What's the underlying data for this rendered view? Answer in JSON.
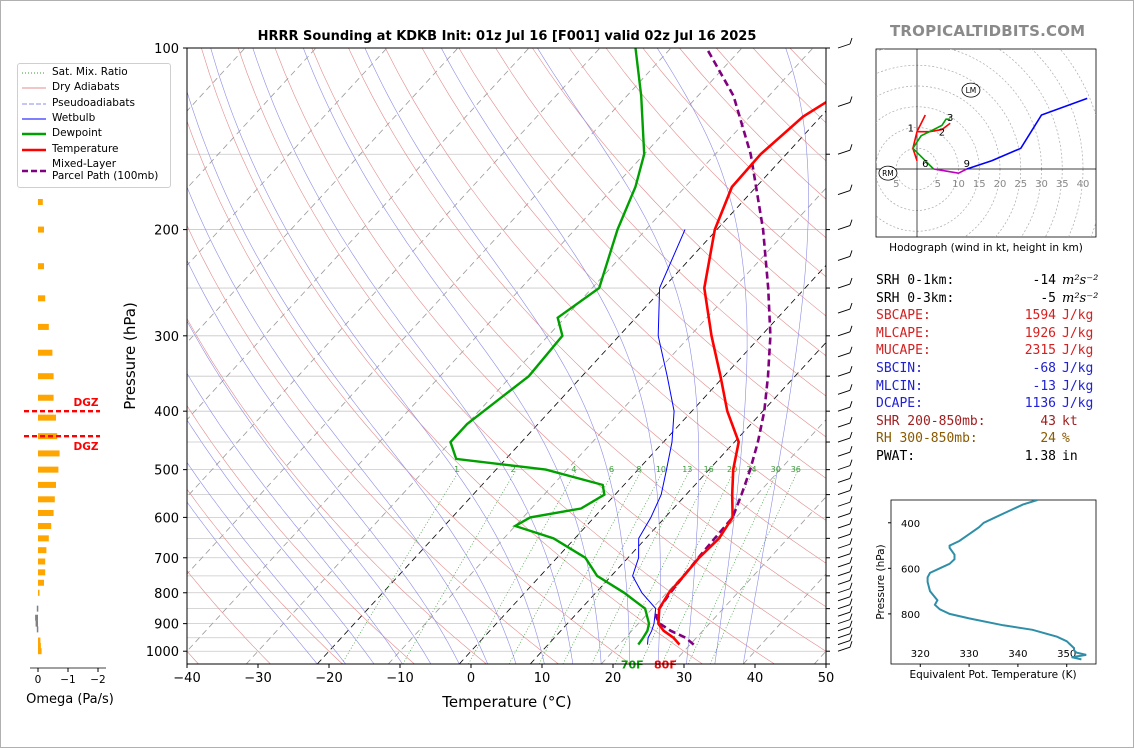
{
  "site": "TROPICALTIDBITS.COM",
  "chart_data": {
    "type": "skewt",
    "title": "HRRR Sounding at KDKB Init: 01z Jul 16 [F001] valid 02z Jul 16 2025",
    "xlabel": "Temperature (°C)",
    "ylabel": "Pressure (hPa)",
    "xlim": [
      -40,
      50
    ],
    "ylim": [
      1050,
      100
    ],
    "x_ticks": [
      "−40",
      "−30",
      "−20",
      "−10",
      "0",
      "10",
      "20",
      "30",
      "40",
      "50"
    ],
    "y_ticks": [
      "100",
      "200",
      "300",
      "400",
      "500",
      "600",
      "700",
      "800",
      "900",
      "1000"
    ],
    "temperature": [
      [
        975,
        28.5
      ],
      [
        950,
        26.8
      ],
      [
        925,
        24.5
      ],
      [
        900,
        22.8
      ],
      [
        850,
        21.0
      ],
      [
        800,
        20.3
      ],
      [
        750,
        20.2
      ],
      [
        700,
        20.0
      ],
      [
        650,
        20.3
      ],
      [
        600,
        19.5
      ],
      [
        550,
        16.5
      ],
      [
        500,
        13.4
      ],
      [
        450,
        10.6
      ],
      [
        400,
        5.0
      ],
      [
        350,
        -0.5
      ],
      [
        300,
        -7.0
      ],
      [
        250,
        -14.2
      ],
      [
        200,
        -20.3
      ],
      [
        170,
        -23.4
      ],
      [
        150,
        -23.6
      ],
      [
        130,
        -22.5
      ],
      [
        100,
        -16.0
      ]
    ],
    "dewpoint": [
      [
        975,
        22.7
      ],
      [
        950,
        22.5
      ],
      [
        925,
        22.2
      ],
      [
        900,
        21.5
      ],
      [
        850,
        19.0
      ],
      [
        800,
        14.0
      ],
      [
        750,
        8.0
      ],
      [
        700,
        4.0
      ],
      [
        650,
        -3.0
      ],
      [
        620,
        -10.0
      ],
      [
        600,
        -9.0
      ],
      [
        580,
        -3.0
      ],
      [
        550,
        -1.5
      ],
      [
        530,
        -3.0
      ],
      [
        500,
        -13.0
      ],
      [
        480,
        -27.0
      ],
      [
        450,
        -30.0
      ],
      [
        420,
        -30.0
      ],
      [
        350,
        -27.5
      ],
      [
        300,
        -28.0
      ],
      [
        280,
        -31.0
      ],
      [
        250,
        -29.0
      ],
      [
        200,
        -34.0
      ],
      [
        170,
        -37.0
      ],
      [
        150,
        -40.0
      ],
      [
        120,
        -48.0
      ],
      [
        100,
        -55.0
      ]
    ],
    "wetbulb": [
      [
        975,
        24.0
      ],
      [
        950,
        23.2
      ],
      [
        925,
        22.8
      ],
      [
        900,
        22.2
      ],
      [
        850,
        20.5
      ],
      [
        800,
        16.5
      ],
      [
        750,
        13.0
      ],
      [
        700,
        11.5
      ],
      [
        650,
        9.0
      ],
      [
        600,
        8.0
      ],
      [
        550,
        6.5
      ],
      [
        500,
        4.0
      ],
      [
        450,
        1.2
      ],
      [
        400,
        -2.5
      ],
      [
        350,
        -8.0
      ],
      [
        300,
        -14.5
      ],
      [
        250,
        -20.5
      ],
      [
        200,
        -24.5
      ]
    ],
    "parcel_path": [
      [
        975,
        30.5
      ],
      [
        950,
        28.5
      ],
      [
        925,
        25.5
      ],
      [
        900,
        23.0
      ],
      [
        875,
        21.5
      ],
      [
        850,
        21.0
      ],
      [
        800,
        20.5
      ],
      [
        750,
        20.2
      ],
      [
        700,
        19.9
      ],
      [
        650,
        19.7
      ],
      [
        600,
        19.5
      ],
      [
        550,
        17.8
      ],
      [
        500,
        15.8
      ],
      [
        450,
        13.3
      ],
      [
        400,
        10.2
      ],
      [
        350,
        6.2
      ],
      [
        300,
        1.3
      ],
      [
        250,
        -5.2
      ],
      [
        200,
        -13.5
      ],
      [
        150,
        -25.0
      ],
      [
        120,
        -35.0
      ],
      [
        100,
        -45.0
      ]
    ],
    "surface_labels": {
      "dewpoint": "70F",
      "temperature": "80F"
    },
    "mixing_ratio_labels": [
      "1",
      "2",
      "4",
      "6",
      "8",
      "10",
      "13",
      "16",
      "20",
      "24",
      "30",
      "36"
    ],
    "legend": [
      "Sat. Mix. Ratio",
      "Dry Adiabats",
      "Pseudoadiabats",
      "Wetbulb",
      "Dewpoint",
      "Temperature",
      "Mixed-Layer\nParcel Path (100mb)"
    ],
    "omega": {
      "xlabel": "Omega (Pa/s)",
      "x_ticks": [
        "0",
        "−1",
        "−2"
      ],
      "dgz_label": "DGZ",
      "dgz_levels": [
        400,
        440
      ],
      "values": [
        [
          1000,
          0.15
        ],
        [
          980,
          0.12
        ],
        [
          960,
          0.1
        ],
        [
          920,
          -0.05
        ],
        [
          900,
          -0.1
        ],
        [
          880,
          -0.12
        ],
        [
          850,
          -0.05
        ],
        [
          800,
          0.05
        ],
        [
          770,
          0.25
        ],
        [
          740,
          0.3
        ],
        [
          710,
          0.3
        ],
        [
          680,
          0.35
        ],
        [
          650,
          0.45
        ],
        [
          620,
          0.55
        ],
        [
          590,
          0.65
        ],
        [
          560,
          0.7
        ],
        [
          530,
          0.75
        ],
        [
          500,
          0.85
        ],
        [
          470,
          0.9
        ],
        [
          440,
          0.8
        ],
        [
          410,
          0.75
        ],
        [
          380,
          0.65
        ],
        [
          350,
          0.65
        ],
        [
          320,
          0.6
        ],
        [
          290,
          0.45
        ],
        [
          260,
          0.3
        ],
        [
          230,
          0.25
        ],
        [
          200,
          0.25
        ],
        [
          180,
          0.2
        ],
        [
          160,
          0.12
        ],
        [
          140,
          0.05
        ],
        [
          110,
          -0.05
        ]
      ]
    },
    "hodograph": {
      "caption": "Hodograph (wind in kt, height in km)",
      "ring_labels": [
        "5",
        "5",
        "10",
        "15",
        "20",
        "25",
        "30",
        "35",
        "40"
      ],
      "markers": [
        "RM",
        "LM"
      ],
      "height_labels": [
        "1",
        "2",
        "3",
        "6",
        "9"
      ],
      "segments": [
        {
          "color": "#ff0000",
          "points": [
            [
              0,
              2
            ],
            [
              -1,
              5
            ],
            [
              0,
              9
            ],
            [
              2,
              13
            ]
          ]
        },
        {
          "color": "#ff0000",
          "points": [
            [
              0,
              9
            ],
            [
              3,
              9
            ],
            [
              6,
              9.5
            ],
            [
              8,
              11
            ]
          ]
        },
        {
          "color": "#00a000",
          "points": [
            [
              -1,
              5
            ],
            [
              1,
              8
            ],
            [
              4,
              9.5
            ],
            [
              6,
              10.5
            ],
            [
              7,
              12
            ],
            [
              8,
              12
            ]
          ]
        },
        {
          "color": "#00a000",
          "points": [
            [
              -1,
              5
            ],
            [
              2,
              2
            ],
            [
              4,
              0
            ]
          ]
        },
        {
          "color": "#c000c0",
          "points": [
            [
              4,
              0
            ],
            [
              7,
              -0.5
            ],
            [
              10,
              -1
            ],
            [
              12,
              0
            ]
          ]
        },
        {
          "color": "#0000ff",
          "points": [
            [
              12,
              0
            ],
            [
              18,
              2
            ],
            [
              25,
              5
            ],
            [
              30,
              13
            ],
            [
              41,
              17
            ]
          ]
        }
      ]
    },
    "theta_e": {
      "xlabel": "Equivalent Pot. Temperature (K)",
      "ylabel": "Pressure (hPa)",
      "x_ticks": [
        "320",
        "330",
        "340",
        "350"
      ],
      "y_ticks": [
        "400",
        "600",
        "800"
      ],
      "values": [
        [
          1000,
          353
        ],
        [
          990,
          351
        ],
        [
          980,
          354
        ],
        [
          970,
          352
        ],
        [
          960,
          351.5
        ],
        [
          950,
          351.5
        ],
        [
          920,
          350
        ],
        [
          900,
          348
        ],
        [
          870,
          343
        ],
        [
          850,
          337
        ],
        [
          820,
          330
        ],
        [
          800,
          326
        ],
        [
          780,
          324
        ],
        [
          760,
          323
        ],
        [
          740,
          323.5
        ],
        [
          700,
          322
        ],
        [
          660,
          321.5
        ],
        [
          640,
          321.5
        ],
        [
          620,
          322
        ],
        [
          600,
          324
        ],
        [
          580,
          326
        ],
        [
          560,
          327
        ],
        [
          540,
          327
        ],
        [
          510,
          326
        ],
        [
          500,
          326
        ],
        [
          480,
          328
        ],
        [
          450,
          330
        ],
        [
          420,
          332
        ],
        [
          400,
          333
        ],
        [
          380,
          335
        ],
        [
          350,
          338
        ],
        [
          320,
          341
        ],
        [
          300,
          344
        ]
      ]
    }
  },
  "params": [
    {
      "k": "SRH 0-1km:",
      "v": "-14",
      "u": "m²s⁻²",
      "color": "#000000"
    },
    {
      "k": "SRH 0-3km:",
      "v": "-5",
      "u": "m²s⁻²",
      "color": "#000000"
    },
    {
      "k": "SBCAPE:",
      "v": "1594",
      "u": "J/kg",
      "color": "#d42020"
    },
    {
      "k": "MLCAPE:",
      "v": "1926",
      "u": "J/kg",
      "color": "#d42020"
    },
    {
      "k": "MUCAPE:",
      "v": "2315",
      "u": "J/kg",
      "color": "#d42020"
    },
    {
      "k": "SBCIN:",
      "v": "-68",
      "u": "J/kg",
      "color": "#2020d4"
    },
    {
      "k": "MLCIN:",
      "v": "-13",
      "u": "J/kg",
      "color": "#2020d4"
    },
    {
      "k": "DCAPE:",
      "v": "1136",
      "u": "J/kg",
      "color": "#2020d4"
    },
    {
      "k": "SHR 200-850mb:",
      "v": "43",
      "u": "kt",
      "color": "#a02020"
    },
    {
      "k": "RH 300-850mb:",
      "v": "24",
      "u": "%",
      "color": "#8a5a00"
    },
    {
      "k": "PWAT:",
      "v": "1.38",
      "u": "in",
      "color": "#000000"
    }
  ],
  "colors": {
    "temperature": "#ff0000",
    "dewpoint": "#00a000",
    "wetbulb": "#0000ff",
    "parcel": "#800080",
    "dry_adiabat": "#e28c8c",
    "pseudoadiabat": "#8c8ce6",
    "mixing_ratio": "#3a9a3a",
    "theta_e": "#2f8fa8",
    "omega_pos": "#ffa500",
    "omega_neg": "#808080"
  }
}
